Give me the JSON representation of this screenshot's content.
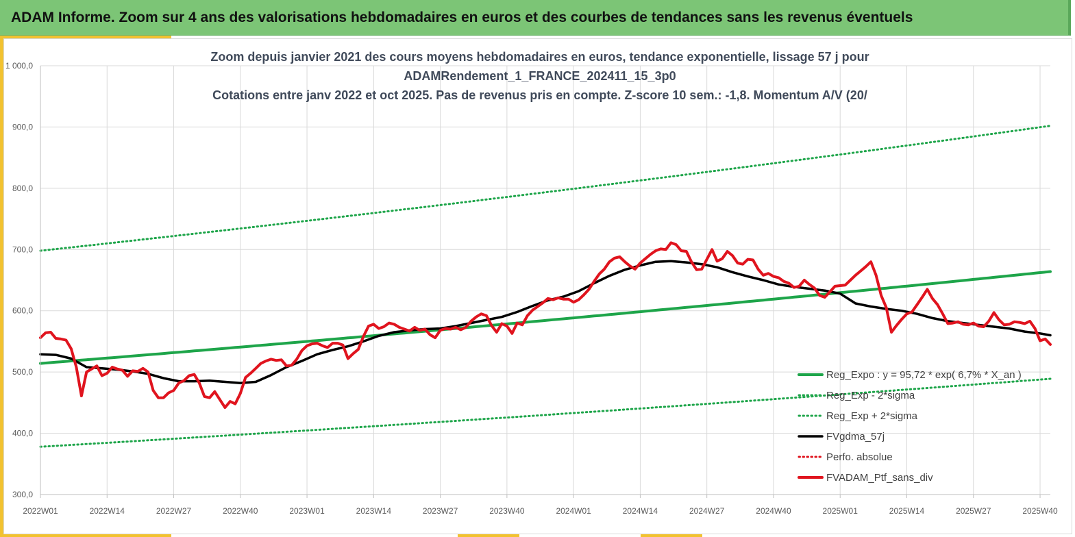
{
  "header": {
    "title": "ADAM Informe. Zoom sur 4 ans des valorisations hebdomadaires en euros et des courbes de tendances sans les revenus éventuels"
  },
  "colors": {
    "banner": "#7cc576",
    "accent": "#f2c230",
    "reg_expo": "#1ea54a",
    "fv_ma": "#000000",
    "perf": "#e0141e",
    "grid": "#d9d9d9"
  },
  "chart_data": {
    "type": "line",
    "title_lines": [
      "Zoom depuis janvier 2021 des cours moyens hebdomadaires  en euros, tendance exponentielle, lissage 57 j pour",
      "ADAMRendement_1_FRANCE_202411_15_3p0",
      "Cotations  entre janv 2022 et oct 2025. Pas de revenus pris en compte. Z-score 10 sem.: -1,8. Momentum A/V (20/"
    ],
    "ylim": [
      300,
      1000
    ],
    "yticks": [
      "300,0",
      "400,0",
      "500,0",
      "600,0",
      "700,0",
      "800,0",
      "900,0",
      "1 000,0"
    ],
    "yvalues": [
      300,
      400,
      500,
      600,
      700,
      800,
      900,
      1000
    ],
    "xlim": [
      0,
      197
    ],
    "xticks": [
      "2022W01",
      "2022W14",
      "2022W27",
      "2022W40",
      "2023W01",
      "2023W14",
      "2023W27",
      "2023W40",
      "2024W01",
      "2024W14",
      "2024W27",
      "2024W40",
      "2025W01",
      "2025W14",
      "2025W27",
      "2025W40"
    ],
    "xtick_index": [
      0,
      13,
      26,
      39,
      52,
      65,
      78,
      91,
      104,
      117,
      130,
      143,
      156,
      169,
      182,
      195
    ],
    "legend": [
      {
        "key": "reg_expo",
        "label": "Reg_Expo : y = 95,72 * exp( 6,7% *  X_an )",
        "style": "solid"
      },
      {
        "key": "reg_minus",
        "label": "Reg_Exp - 2*sigma",
        "style": "dotted"
      },
      {
        "key": "reg_plus",
        "label": "Reg_Exp + 2*sigma",
        "style": "dotted"
      },
      {
        "key": "fv_ma",
        "label": "FVgdma_57j",
        "style": "solid"
      },
      {
        "key": "perf",
        "label": "Perfo. absolue",
        "style": "dotted"
      },
      {
        "key": "fv_ptf",
        "label": "FVADAM_Ptf_sans_div",
        "style": "solid"
      }
    ],
    "series": [
      {
        "name": "Reg_Expo",
        "key": "reg_expo",
        "x": [
          0,
          197
        ],
        "exp_start": 514,
        "exp_end": 664
      },
      {
        "name": "Reg_Exp - 2*sigma",
        "key": "reg_minus",
        "x": [
          0,
          197
        ],
        "exp_start": 378,
        "exp_end": 489
      },
      {
        "name": "Reg_Exp + 2*sigma",
        "key": "reg_plus",
        "x": [
          0,
          197
        ],
        "exp_start": 698,
        "exp_end": 902
      },
      {
        "name": "FVgdma_57j",
        "key": "fv_ma",
        "x": [
          0,
          3,
          6,
          9,
          12,
          15,
          18,
          21,
          24,
          27,
          30,
          33,
          36,
          39,
          42,
          45,
          48,
          51,
          54,
          57,
          60,
          63,
          66,
          69,
          72,
          75,
          78,
          81,
          84,
          87,
          90,
          93,
          96,
          99,
          102,
          105,
          108,
          111,
          114,
          117,
          120,
          123,
          126,
          129,
          132,
          135,
          138,
          141,
          144,
          147,
          150,
          153,
          156,
          159,
          162,
          165,
          168,
          171,
          174,
          177,
          180,
          183,
          186,
          189,
          192,
          195,
          197
        ],
        "values": [
          529,
          528,
          522,
          508,
          506,
          504,
          501,
          497,
          490,
          485,
          485,
          486,
          484,
          482,
          484,
          495,
          508,
          518,
          529,
          536,
          542,
          550,
          559,
          565,
          568,
          570,
          571,
          575,
          580,
          585,
          590,
          598,
          608,
          617,
          623,
          632,
          645,
          657,
          667,
          674,
          680,
          681,
          679,
          676,
          671,
          663,
          656,
          650,
          643,
          639,
          636,
          633,
          628,
          612,
          607,
          603,
          600,
          595,
          588,
          583,
          580,
          577,
          574,
          571,
          566,
          563,
          560
        ]
      },
      {
        "name": "FVADAM_Ptf_sans_div",
        "key": "fv_ptf",
        "x": [
          0,
          1,
          2,
          3,
          4,
          5,
          6,
          7,
          8,
          9,
          10,
          11,
          12,
          13,
          14,
          15,
          16,
          17,
          18,
          19,
          20,
          21,
          22,
          23,
          24,
          25,
          26,
          27,
          28,
          29,
          30,
          31,
          32,
          33,
          34,
          35,
          36,
          37,
          38,
          39,
          40,
          41,
          42,
          43,
          44,
          45,
          46,
          47,
          48,
          49,
          50,
          51,
          52,
          53,
          54,
          55,
          56,
          57,
          58,
          59,
          60,
          61,
          62,
          63,
          64,
          65,
          66,
          67,
          68,
          69,
          70,
          71,
          72,
          73,
          74,
          75,
          76,
          77,
          78,
          79,
          80,
          81,
          82,
          83,
          84,
          85,
          86,
          87,
          88,
          89,
          90,
          91,
          92,
          93,
          94,
          95,
          96,
          97,
          98,
          99,
          100,
          101,
          102,
          103,
          104,
          105,
          106,
          107,
          108,
          109,
          110,
          111,
          112,
          113,
          114,
          115,
          116,
          117,
          118,
          119,
          120,
          121,
          122,
          123,
          124,
          125,
          126,
          127,
          128,
          129,
          130,
          131,
          132,
          133,
          134,
          135,
          136,
          137,
          138,
          139,
          140,
          141,
          142,
          143,
          144,
          145,
          146,
          147,
          148,
          149,
          150,
          151,
          152,
          153,
          154,
          155,
          156,
          157,
          158,
          159,
          160,
          161,
          162,
          163,
          164,
          165,
          166,
          167,
          168,
          169,
          170,
          171,
          172,
          173,
          174,
          175,
          176,
          177,
          178,
          179,
          180,
          181,
          182,
          183,
          184,
          185,
          186,
          187,
          188,
          189,
          190,
          191,
          192,
          193,
          194,
          195,
          196,
          197
        ],
        "values": [
          556,
          564,
          565,
          555,
          554,
          552,
          538,
          508,
          461,
          500,
          505,
          510,
          494,
          498,
          508,
          505,
          503,
          493,
          502,
          501,
          506,
          500,
          470,
          458,
          458,
          466,
          470,
          482,
          486,
          494,
          496,
          482,
          460,
          458,
          468,
          455,
          442,
          452,
          448,
          465,
          491,
          498,
          506,
          514,
          518,
          521,
          519,
          520,
          510,
          511,
          521,
          535,
          543,
          546,
          547,
          543,
          540,
          547,
          547,
          544,
          522,
          530,
          537,
          558,
          575,
          578,
          571,
          574,
          580,
          578,
          573,
          570,
          567,
          573,
          568,
          570,
          561,
          556,
          568,
          571,
          570,
          573,
          569,
          573,
          583,
          590,
          595,
          592,
          576,
          565,
          579,
          575,
          563,
          580,
          577,
          592,
          601,
          607,
          613,
          620,
          618,
          621,
          619,
          619,
          614,
          618,
          626,
          635,
          648,
          660,
          668,
          680,
          686,
          688,
          680,
          673,
          668,
          678,
          685,
          692,
          698,
          701,
          700,
          711,
          708,
          698,
          697,
          680,
          667,
          668,
          684,
          700,
          681,
          685,
          697,
          690,
          678,
          676,
          684,
          683,
          668,
          658,
          661,
          656,
          654,
          648,
          645,
          638,
          640,
          650,
          643,
          637,
          625,
          622,
          631,
          640,
          641,
          642,
          650,
          658,
          665,
          672,
          680,
          658,
          625,
          605,
          565,
          576,
          586,
          595,
          598,
          610,
          622,
          635,
          620,
          610,
          595,
          579,
          580,
          582,
          578,
          577,
          580,
          575,
          574,
          583,
          597,
          585,
          577,
          578,
          582,
          581,
          579,
          583,
          571,
          551,
          554,
          545
        ]
      }
    ]
  }
}
